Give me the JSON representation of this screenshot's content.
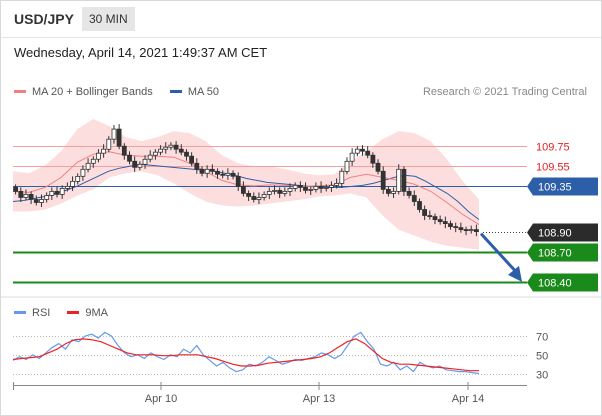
{
  "header": {
    "symbol": "USD/JPY",
    "timeframe": "30 MIN",
    "datetime": "Wednesday, April 14, 2021 1:49:37 AM CET",
    "credit": "Research © 2021 Trading Central"
  },
  "legend": {
    "bb": {
      "label": "MA 20 + Bollinger Bands",
      "color": "#f08080"
    },
    "ma50": {
      "label": "MA 50",
      "color": "#2c5fa8"
    }
  },
  "chart_data": [
    {
      "type": "candlestick",
      "title": "USD/JPY",
      "ylim": [
        108.25,
        110.1
      ],
      "x_ticks": [
        "Apr 10",
        "Apr 13",
        "Apr 14"
      ],
      "current_price": 108.9,
      "levels": [
        {
          "value": 109.75,
          "label": "109.75",
          "style": "resistance"
        },
        {
          "value": 109.55,
          "label": "109.55",
          "style": "resistance"
        },
        {
          "value": 109.35,
          "label": "109.35",
          "style": "pivot"
        },
        {
          "value": 108.9,
          "label": "108.90",
          "style": "last"
        },
        {
          "value": 108.7,
          "label": "108.70",
          "style": "target"
        },
        {
          "value": 108.4,
          "label": "108.40",
          "style": "target"
        }
      ],
      "projection": {
        "from": 108.9,
        "to": 108.4,
        "direction": "down"
      },
      "close": [
        109.3,
        109.24,
        109.27,
        109.22,
        109.19,
        109.22,
        109.26,
        109.3,
        109.27,
        109.33,
        109.35,
        109.4,
        109.45,
        109.52,
        109.58,
        109.62,
        109.68,
        109.72,
        109.82,
        109.92,
        109.75,
        109.66,
        109.6,
        109.54,
        109.57,
        109.62,
        109.66,
        109.69,
        109.72,
        109.74,
        109.76,
        109.72,
        109.69,
        109.65,
        109.58,
        109.52,
        109.48,
        109.52,
        109.5,
        109.47,
        109.46,
        109.48,
        109.45,
        109.35,
        109.28,
        109.25,
        109.22,
        109.24,
        109.27,
        109.3,
        109.31,
        109.28,
        109.3,
        109.33,
        109.36,
        109.34,
        109.31,
        109.32,
        109.35,
        109.33,
        109.34,
        109.36,
        109.38,
        109.5,
        109.6,
        109.68,
        109.72,
        109.7,
        109.66,
        109.58,
        109.5,
        109.32,
        109.28,
        109.3,
        109.52,
        109.3,
        109.26,
        109.2,
        109.12,
        109.06,
        109.05,
        109.02,
        109.0,
        108.98,
        108.95,
        108.94,
        108.92,
        108.91,
        108.92,
        108.9
      ],
      "ma50": [
        109.2,
        109.21,
        109.23,
        109.25,
        109.28,
        109.31,
        109.35,
        109.4,
        109.45,
        109.5,
        109.53,
        109.55,
        109.57,
        109.56,
        109.55,
        109.54,
        109.53,
        109.52,
        109.51,
        109.5,
        109.48,
        109.46,
        109.43,
        109.41,
        109.39,
        109.38,
        109.37,
        109.36,
        109.35,
        109.34,
        109.34,
        109.34,
        109.35,
        109.36,
        109.38,
        109.41,
        109.44,
        109.46,
        109.45,
        109.4,
        109.34,
        109.28,
        109.2,
        109.1,
        109.02
      ],
      "bb_upper": [
        109.5,
        109.48,
        109.56,
        109.7,
        109.92,
        110.02,
        109.95,
        109.84,
        109.8,
        109.84,
        109.9,
        109.88,
        109.8,
        109.66,
        109.58,
        109.55,
        109.55,
        109.52,
        109.48,
        109.46,
        109.47,
        109.6,
        109.7,
        109.82,
        109.9,
        109.88,
        109.8,
        109.62,
        109.4,
        109.22
      ],
      "bb_lower": [
        109.1,
        109.1,
        109.12,
        109.18,
        109.26,
        109.32,
        109.44,
        109.48,
        109.5,
        109.46,
        109.38,
        109.28,
        109.2,
        109.16,
        109.15,
        109.16,
        109.18,
        109.2,
        109.22,
        109.25,
        109.26,
        109.28,
        109.24,
        109.06,
        108.92,
        108.86,
        108.8,
        108.76,
        108.74,
        108.72
      ]
    },
    {
      "type": "line",
      "title": "RSI",
      "ylim": [
        22,
        84
      ],
      "y_ticks": [
        70,
        50,
        30
      ],
      "series": [
        {
          "name": "RSI",
          "color": "#6699ee",
          "values": [
            44,
            48,
            45,
            50,
            46,
            52,
            58,
            62,
            56,
            66,
            64,
            70,
            72,
            68,
            74,
            70,
            60,
            52,
            48,
            50,
            46,
            52,
            48,
            45,
            50,
            48,
            56,
            52,
            60,
            50,
            44,
            38,
            42,
            36,
            32,
            34,
            40,
            38,
            42,
            48,
            44,
            40,
            42,
            45,
            44,
            46,
            48,
            52,
            50,
            46,
            50,
            60,
            70,
            74,
            64,
            56,
            40,
            38,
            42,
            34,
            38,
            32,
            42,
            38,
            36,
            38,
            34,
            33,
            32,
            32,
            31,
            30
          ]
        },
        {
          "name": "9MA",
          "color": "#ee2222",
          "values": [
            45,
            46,
            47,
            48,
            52,
            56,
            62,
            66,
            67,
            66,
            64,
            60,
            56,
            52,
            50,
            50,
            50,
            49,
            49,
            50,
            50,
            50,
            48,
            46,
            43,
            40,
            38,
            38,
            39,
            41,
            42,
            43,
            44,
            45,
            46,
            48,
            52,
            58,
            64,
            67,
            62,
            54,
            46,
            42,
            40,
            40,
            39,
            38,
            37,
            36,
            35,
            34,
            33,
            33
          ]
        }
      ]
    }
  ]
}
